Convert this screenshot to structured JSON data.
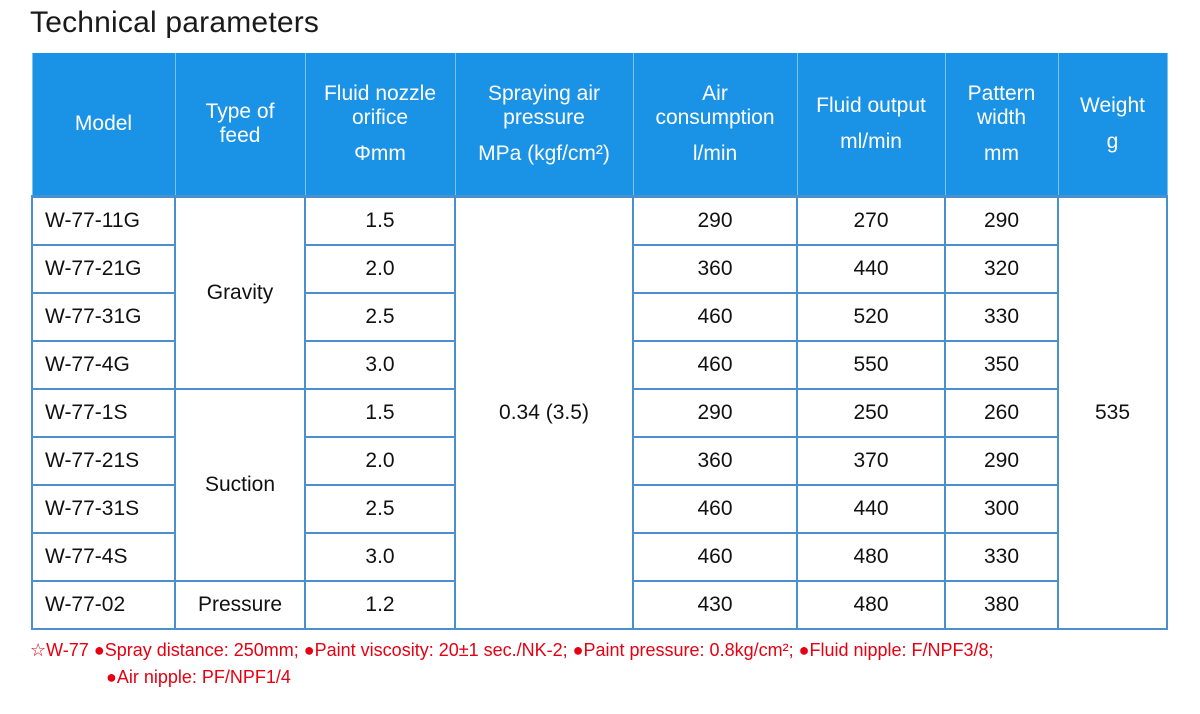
{
  "title": "Technical parameters",
  "headers": {
    "model": "Model",
    "feed": "Type of feed",
    "nozzle": "Fluid nozzle orifice",
    "nozzle_unit": "Φmm",
    "pressure": "Spraying air pressure",
    "pressure_unit": "MPa (kgf/cm²)",
    "air": "Air consumption",
    "air_unit": "l/min",
    "fluid": "Fluid output",
    "fluid_unit": "ml/min",
    "pattern": "Pattern width",
    "pattern_unit": "mm",
    "weight": "Weight",
    "weight_unit": "g"
  },
  "feeds": {
    "gravity": "Gravity",
    "suction": "Suction",
    "pressure": "Pressure"
  },
  "shared": {
    "pressure_value": "0.34 (3.5)",
    "weight_value": "535"
  },
  "rows": [
    {
      "model": "W-77-11G",
      "nozzle": "1.5",
      "air": "290",
      "fluid": "270",
      "pattern": "290"
    },
    {
      "model": "W-77-21G",
      "nozzle": "2.0",
      "air": "360",
      "fluid": "440",
      "pattern": "320"
    },
    {
      "model": "W-77-31G",
      "nozzle": "2.5",
      "air": "460",
      "fluid": "520",
      "pattern": "330"
    },
    {
      "model": "W-77-4G",
      "nozzle": "3.0",
      "air": "460",
      "fluid": "550",
      "pattern": "350"
    },
    {
      "model": "W-77-1S",
      "nozzle": "1.5",
      "air": "290",
      "fluid": "250",
      "pattern": "260"
    },
    {
      "model": "W-77-21S",
      "nozzle": "2.0",
      "air": "360",
      "fluid": "370",
      "pattern": "290"
    },
    {
      "model": "W-77-31S",
      "nozzle": "2.5",
      "air": "460",
      "fluid": "440",
      "pattern": "300"
    },
    {
      "model": "W-77-4S",
      "nozzle": "3.0",
      "air": "460",
      "fluid": "480",
      "pattern": "330"
    },
    {
      "model": "W-77-02",
      "nozzle": "1.2",
      "air": "430",
      "fluid": "480",
      "pattern": "380"
    }
  ],
  "note": {
    "line1": "☆W-77 ●Spray distance: 250mm; ●Paint viscosity: 20±1 sec./NK-2; ●Paint pressure: 0.8kg/cm²; ●Fluid nipple: F/NPF3/8;",
    "line2": "●Air nipple: PF/NPF1/4"
  },
  "colors": {
    "header_bg": "#1a93e6",
    "grid": "#4a90cf",
    "note": "#e60012"
  }
}
